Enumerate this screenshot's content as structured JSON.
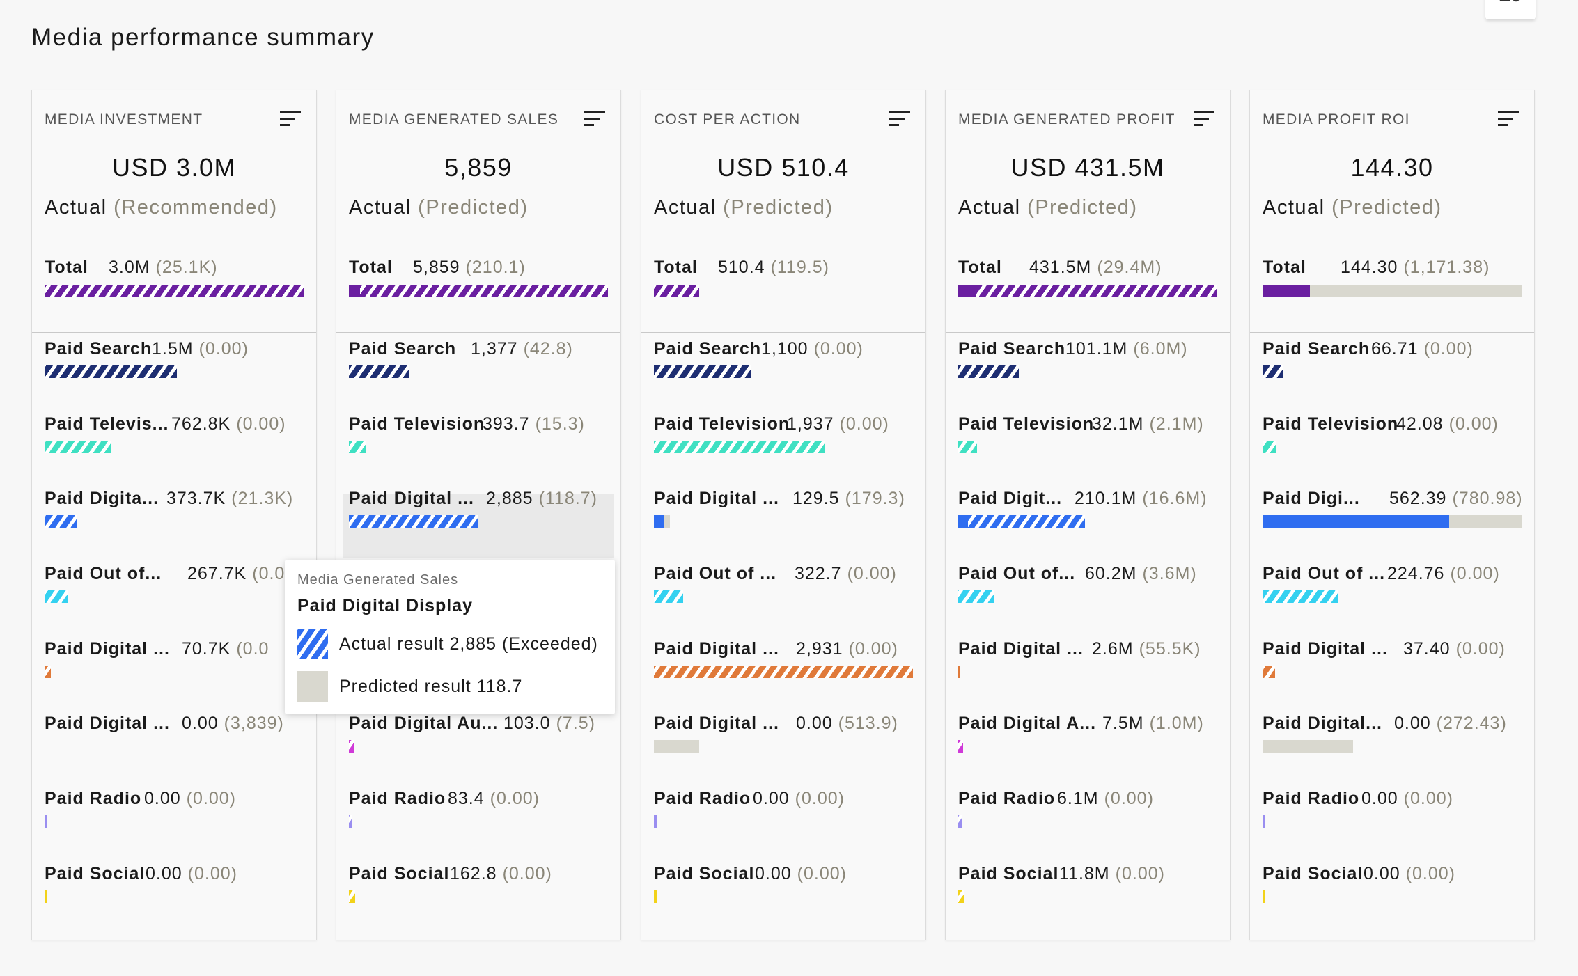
{
  "page_title": "Media performance summary",
  "colors": {
    "purple": "#6a1fa0",
    "navy": "#1e2e72",
    "teal": "#3fe0c2",
    "blue": "#2f6df0",
    "cyan": "#34d1f0",
    "orange": "#e07a3a",
    "magenta": "#d03ad8",
    "lavender": "#9a8ef0",
    "yellow": "#f2d21a",
    "predicted_gray": "#d9d8cf"
  },
  "cards": [
    {
      "metric": "MEDIA INVESTMENT",
      "value": "USD 3.0M",
      "sub_main": "Actual",
      "sub_muted": "(Recommended)",
      "total_label": "Total",
      "total_value": "3.0M",
      "total_muted": "(25.1K)",
      "rows": [
        {
          "label": "Paid Search",
          "value": "1.5M",
          "muted": "(0.00)"
        },
        {
          "label": "Paid Televis...",
          "value": "762.8K",
          "muted": "(0.00)"
        },
        {
          "label": "Paid Digita...",
          "value": "373.7K",
          "muted": "(21.3K)"
        },
        {
          "label": "Paid Out of...",
          "value": "267.7K",
          "muted": "(0.0"
        },
        {
          "label": "Paid Digital ...",
          "value": "70.7K",
          "muted": "(0.0"
        },
        {
          "label": "Paid Digital ...",
          "value": "0.00",
          "muted": "(3,839)"
        },
        {
          "label": "Paid Radio",
          "value": "0.00",
          "muted": "(0.00)"
        },
        {
          "label": "Paid Social",
          "value": "0.00",
          "muted": "(0.00)"
        }
      ]
    },
    {
      "metric": "MEDIA GENERATED SALES",
      "value": "5,859",
      "sub_main": "Actual",
      "sub_muted": "(Predicted)",
      "total_label": "Total",
      "total_value": "5,859",
      "total_muted": "(210.1)",
      "rows": [
        {
          "label": "Paid Search",
          "value": "1,377",
          "muted": "(42.8)"
        },
        {
          "label": "Paid Television",
          "value": "393.7",
          "muted": "(15.3)"
        },
        {
          "label": "Paid Digital ...",
          "value": "2,885",
          "muted": "(118.7)"
        },
        {
          "label": "",
          "value": "",
          "muted": ""
        },
        {
          "label": "",
          "value": "",
          "muted": ""
        },
        {
          "label": "Paid Digital Au...",
          "value": "103.0",
          "muted": "(7.5)"
        },
        {
          "label": "Paid Radio",
          "value": "83.4",
          "muted": "(0.00)"
        },
        {
          "label": "Paid Social",
          "value": "162.8",
          "muted": "(0.00)"
        }
      ]
    },
    {
      "metric": "COST PER ACTION",
      "value": "USD 510.4",
      "sub_main": "Actual",
      "sub_muted": "(Predicted)",
      "total_label": "Total",
      "total_value": "510.4",
      "total_muted": "(119.5)",
      "rows": [
        {
          "label": "Paid Search",
          "value": "1,100",
          "muted": "(0.00)"
        },
        {
          "label": "Paid Television",
          "value": "1,937",
          "muted": "(0.00)"
        },
        {
          "label": "Paid Digital ...",
          "value": "129.5",
          "muted": "(179.3)"
        },
        {
          "label": "Paid Out of ...",
          "value": "322.7",
          "muted": "(0.00)"
        },
        {
          "label": "Paid Digital ...",
          "value": "2,931",
          "muted": "(0.00)"
        },
        {
          "label": "Paid Digital ...",
          "value": "0.00",
          "muted": "(513.9)"
        },
        {
          "label": "Paid Radio",
          "value": "0.00",
          "muted": "(0.00)"
        },
        {
          "label": "Paid Social",
          "value": "0.00",
          "muted": "(0.00)"
        }
      ]
    },
    {
      "metric": "MEDIA GENERATED PROFIT",
      "value": "USD 431.5M",
      "sub_main": "Actual",
      "sub_muted": "(Predicted)",
      "total_label": "Total",
      "total_value": "431.5M",
      "total_muted": "(29.4M)",
      "rows": [
        {
          "label": "Paid Search",
          "value": "101.1M",
          "muted": "(6.0M)"
        },
        {
          "label": "Paid Television",
          "value": "32.1M",
          "muted": "(2.1M)"
        },
        {
          "label": "Paid Digit...",
          "value": "210.1M",
          "muted": "(16.6M)"
        },
        {
          "label": "Paid Out of...",
          "value": "60.2M",
          "muted": "(3.6M)"
        },
        {
          "label": "Paid Digital ...",
          "value": "2.6M",
          "muted": "(55.5K)"
        },
        {
          "label": "Paid Digital A...",
          "value": "7.5M",
          "muted": "(1.0M)"
        },
        {
          "label": "Paid Radio",
          "value": "6.1M",
          "muted": "(0.00)"
        },
        {
          "label": "Paid Social",
          "value": "11.8M",
          "muted": "(0.00)"
        }
      ]
    },
    {
      "metric": "MEDIA PROFIT ROI",
      "value": "144.30",
      "sub_main": "Actual",
      "sub_muted": "(Predicted)",
      "total_label": "Total",
      "total_value": "144.30",
      "total_muted": "(1,171.38)",
      "rows": [
        {
          "label": "Paid Search",
          "value": "66.71",
          "muted": "(0.00)"
        },
        {
          "label": "Paid Television",
          "value": "42.08",
          "muted": "(0.00)"
        },
        {
          "label": "Paid Digi...",
          "value": "562.39",
          "muted": "(780.98)"
        },
        {
          "label": "Paid Out of ...",
          "value": "224.76",
          "muted": "(0.00)"
        },
        {
          "label": "Paid Digital ...",
          "value": "37.40",
          "muted": "(0.00)"
        },
        {
          "label": "Paid Digital...",
          "value": "0.00",
          "muted": "(272.43)"
        },
        {
          "label": "Paid Radio",
          "value": "0.00",
          "muted": "(0.00)"
        },
        {
          "label": "Paid Social",
          "value": "0.00",
          "muted": "(0.00)"
        }
      ]
    }
  ],
  "tooltip": {
    "subtitle": "Media Generated Sales",
    "title": "Paid Digital Display",
    "actual_text": "Actual result 2,885 (Exceeded)",
    "predicted_text": "Predicted result 118.7"
  }
}
